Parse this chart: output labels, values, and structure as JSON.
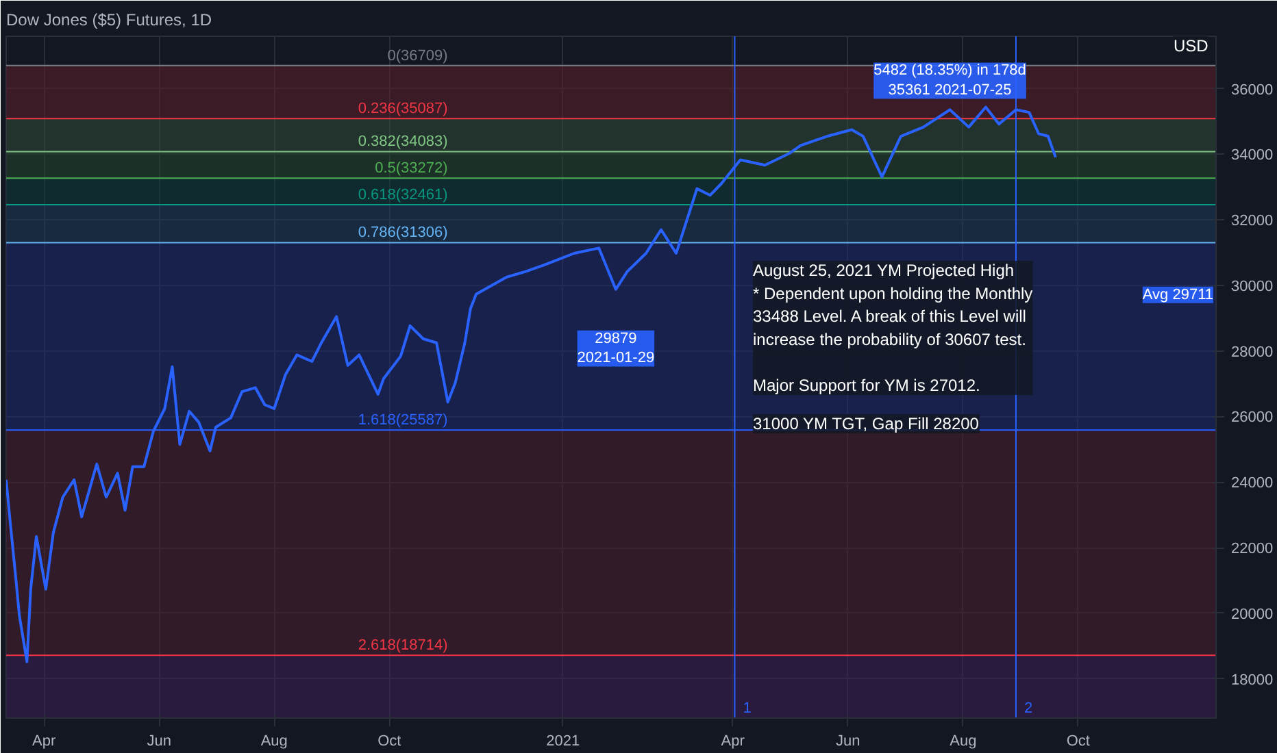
{
  "chart_data": {
    "type": "line",
    "title": "Dow Jones ($5) Futures, 1D",
    "x": [
      "2020-03-12",
      "2020-03-14",
      "2020-03-17",
      "2020-03-19",
      "2020-03-23",
      "2020-03-25",
      "2020-03-28",
      "2020-04-02",
      "2020-04-06",
      "2020-04-11",
      "2020-04-17",
      "2020-04-21",
      "2020-04-29",
      "2020-05-04",
      "2020-05-10",
      "2020-05-14",
      "2020-05-18",
      "2020-05-24",
      "2020-05-29",
      "2020-06-04",
      "2020-06-08",
      "2020-06-12",
      "2020-06-17",
      "2020-06-22",
      "2020-06-28",
      "2020-07-01",
      "2020-07-09",
      "2020-07-15",
      "2020-07-22",
      "2020-07-27",
      "2020-08-01",
      "2020-08-07",
      "2020-08-13",
      "2020-08-21",
      "2020-08-26",
      "2020-09-03",
      "2020-09-09",
      "2020-09-15",
      "2020-09-25",
      "2020-09-28",
      "2020-10-07",
      "2020-10-12",
      "2020-10-19",
      "2020-10-26",
      "2020-11-01",
      "2020-11-05",
      "2020-11-10",
      "2020-11-13",
      "2020-11-16",
      "2020-12-02",
      "2020-12-12",
      "2020-12-22",
      "2021-01-07",
      "2021-01-20",
      "2021-01-29",
      "2021-02-04",
      "2021-02-14",
      "2021-02-22",
      "2021-03-02",
      "2021-03-06",
      "2021-03-13",
      "2021-03-20",
      "2021-03-26",
      "2021-04-05",
      "2021-04-18",
      "2021-05-01",
      "2021-05-07",
      "2021-05-21",
      "2021-06-03",
      "2021-06-09",
      "2021-06-19",
      "2021-06-29",
      "2021-07-11",
      "2021-07-25",
      "2021-08-04",
      "2021-08-13",
      "2021-08-20",
      "2021-08-29",
      "2021-09-05",
      "2021-09-10",
      "2021-09-15",
      "2021-09-19"
    ],
    "series": [
      {
        "color": "#2962ff",
        "values": [
          24070,
          22860,
          21130,
          19930,
          18520,
          20730,
          22340,
          20730,
          22460,
          23540,
          24070,
          22940,
          24550,
          23540,
          24270,
          23140,
          24470,
          24470,
          25550,
          26240,
          27520,
          25150,
          26160,
          25830,
          24950,
          25670,
          25960,
          26760,
          26880,
          26360,
          26240,
          27280,
          27880,
          27680,
          28250,
          29050,
          27560,
          27880,
          26680,
          27160,
          27840,
          28770,
          28370,
          28250,
          26440,
          27040,
          28250,
          29290,
          29730,
          30250,
          30420,
          30620,
          30980,
          31140,
          29879,
          30420,
          30980,
          31700,
          30980,
          31700,
          32950,
          32750,
          33110,
          33830,
          33670,
          34030,
          34270,
          34550,
          34750,
          34550,
          33310,
          34550,
          34830,
          35361,
          34830,
          35440,
          34920,
          35360,
          35280,
          34630,
          34550,
          33910
        ]
      }
    ],
    "xlim": [
      "2020-03-12",
      "2021-12-13"
    ],
    "ylim": [
      16800,
      37600
    ],
    "xticks": [
      {
        "value": "2020-04-01",
        "label": "Apr"
      },
      {
        "value": "2020-06-01",
        "label": "Jun"
      },
      {
        "value": "2020-08-01",
        "label": "Aug"
      },
      {
        "value": "2020-10-01",
        "label": "Oct"
      },
      {
        "value": "2021-01-01",
        "label": "2021"
      },
      {
        "value": "2021-04-01",
        "label": "Apr"
      },
      {
        "value": "2021-06-01",
        "label": "Jun"
      },
      {
        "value": "2021-08-01",
        "label": "Aug"
      },
      {
        "value": "2021-10-01",
        "label": "Oct"
      }
    ],
    "yticks": [
      18000,
      20000,
      22000,
      24000,
      26000,
      28000,
      30000,
      32000,
      34000,
      36000
    ],
    "grid": true,
    "ref_lines": [
      {
        "axis": "y",
        "value": 36709,
        "label": "0(36709)",
        "color": "#787b86"
      },
      {
        "axis": "y",
        "value": 35087,
        "label": "0.236(35087)",
        "color": "#f23645"
      },
      {
        "axis": "y",
        "value": 34083,
        "label": "0.382(34083)",
        "color": "#81c784"
      },
      {
        "axis": "y",
        "value": 33272,
        "label": "0.5(33272)",
        "color": "#4caf50"
      },
      {
        "axis": "y",
        "value": 32461,
        "label": "0.618(32461)",
        "color": "#089981"
      },
      {
        "axis": "y",
        "value": 31306,
        "label": "0.786(31306)",
        "color": "#64b5f6"
      },
      {
        "axis": "y",
        "value": 25587,
        "label": "1.618(25587)",
        "color": "#2962ff"
      },
      {
        "axis": "y",
        "value": 18714,
        "label": "2.618(18714)",
        "color": "#f23645"
      },
      {
        "axis": "x",
        "value": "2021-04-02",
        "label": "1",
        "color": "#2962ff"
      },
      {
        "axis": "x",
        "value": "2021-08-29",
        "label": "2",
        "color": "#2962ff"
      }
    ],
    "bands": [
      {
        "axis": "y",
        "from": 35087,
        "to": 36709,
        "color": "#5d1f2a"
      },
      {
        "axis": "y",
        "from": 34083,
        "to": 35087,
        "color": "#2e4a34"
      },
      {
        "axis": "y",
        "from": 33272,
        "to": 34083,
        "color": "#24452c"
      },
      {
        "axis": "y",
        "from": 32461,
        "to": 33272,
        "color": "#0f3d3a"
      },
      {
        "axis": "y",
        "from": 31306,
        "to": 32461,
        "color": "#1e3a5a"
      },
      {
        "axis": "y",
        "from": 25587,
        "to": 31306,
        "color": "#1c2a6e"
      },
      {
        "axis": "y",
        "from": 18714,
        "to": 25587,
        "color": "#4a1f30"
      },
      {
        "axis": "y",
        "from": 16800,
        "to": 18714,
        "color": "#3a1f55"
      }
    ],
    "annotations": [
      {
        "text": "29879\n2021-01-29",
        "x": "2021-01-29",
        "y": 29879
      },
      {
        "text": "5482 (18.35%) in 178d\n35361 2021-07-25",
        "x": "2021-07-25",
        "y": 35361
      },
      {
        "text": "Avg 29711",
        "x": "2021-12-13",
        "y": 29711
      },
      "August 25, 2021 YM Projected High\n* Dependent upon holding the Monthly\n33488 Level. A break of this Level will\nincrease the probability of  30607 test.\n\nMajor Support for YM is 27012.",
      "31000 YM TGT, Gap Fill 28200",
      "USD"
    ]
  }
}
